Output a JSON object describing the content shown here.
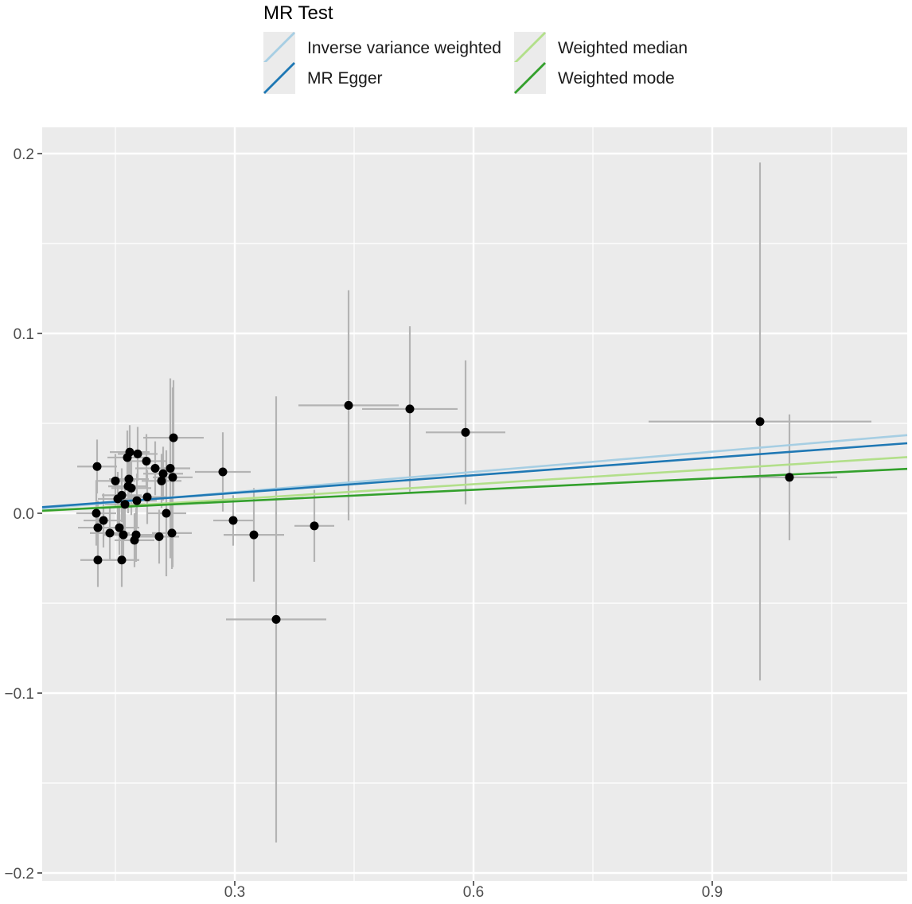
{
  "chart_data": {
    "type": "scatter",
    "title": "",
    "xlabel": "",
    "ylabel": "",
    "xlim": [
      0.1,
      1.12
    ],
    "ylim": [
      -0.2,
      0.215
    ],
    "x_ticks": [
      0.3,
      0.6,
      0.9
    ],
    "x_tick_labels": [
      "0.3",
      "0.6",
      "0.9"
    ],
    "y_ticks": [
      -0.2,
      -0.1,
      0.0,
      0.1,
      0.2
    ],
    "y_tick_labels": [
      "−0.2",
      "−0.1",
      "0.0",
      "0.1",
      "0.2"
    ],
    "grid": true,
    "legend": {
      "title": "MR Test",
      "position": "top",
      "entries": [
        {
          "name": "Inverse variance weighted",
          "color": "#a6cee3"
        },
        {
          "name": "MR Egger",
          "color": "#1f78b4"
        },
        {
          "name": "Weighted median",
          "color": "#b2df8a"
        },
        {
          "name": "Weighted mode",
          "color": "#33a02c"
        }
      ]
    },
    "lines": [
      {
        "name": "Inverse variance weighted",
        "color": "#a6cee3",
        "slope": 0.0375,
        "intercept": 0.0005
      },
      {
        "name": "MR Egger",
        "color": "#1f78b4",
        "slope": 0.0327,
        "intercept": 0.0015
      },
      {
        "name": "Weighted median",
        "color": "#b2df8a",
        "slope": 0.0276,
        "intercept": -0.0004
      },
      {
        "name": "Weighted mode",
        "color": "#33a02c",
        "slope": 0.0214,
        "intercept": 0.0002
      }
    ],
    "points": [
      {
        "x": 0.127,
        "y": 0.026,
        "xerr": 0.025,
        "yerr": 0.015
      },
      {
        "x": 0.126,
        "y": 0.0,
        "xerr": 0.025,
        "yerr": 0.018
      },
      {
        "x": 0.128,
        "y": -0.008,
        "xerr": 0.025,
        "yerr": 0.015
      },
      {
        "x": 0.128,
        "y": -0.026,
        "xerr": 0.022,
        "yerr": 0.015
      },
      {
        "x": 0.135,
        "y": -0.004,
        "xerr": 0.025,
        "yerr": 0.015
      },
      {
        "x": 0.143,
        "y": -0.011,
        "xerr": 0.025,
        "yerr": 0.015
      },
      {
        "x": 0.15,
        "y": 0.018,
        "xerr": 0.025,
        "yerr": 0.015
      },
      {
        "x": 0.153,
        "y": 0.008,
        "xerr": 0.025,
        "yerr": 0.015
      },
      {
        "x": 0.155,
        "y": -0.008,
        "xerr": 0.025,
        "yerr": 0.015
      },
      {
        "x": 0.158,
        "y": 0.01,
        "xerr": 0.025,
        "yerr": 0.015
      },
      {
        "x": 0.158,
        "y": -0.026,
        "xerr": 0.022,
        "yerr": 0.015
      },
      {
        "x": 0.16,
        "y": -0.012,
        "xerr": 0.025,
        "yerr": 0.015
      },
      {
        "x": 0.162,
        "y": 0.005,
        "xerr": 0.025,
        "yerr": 0.015
      },
      {
        "x": 0.165,
        "y": 0.031,
        "xerr": 0.025,
        "yerr": 0.015
      },
      {
        "x": 0.166,
        "y": 0.015,
        "xerr": 0.025,
        "yerr": 0.015
      },
      {
        "x": 0.167,
        "y": 0.019,
        "xerr": 0.025,
        "yerr": 0.015
      },
      {
        "x": 0.168,
        "y": 0.034,
        "xerr": 0.025,
        "yerr": 0.015
      },
      {
        "x": 0.17,
        "y": 0.014,
        "xerr": 0.025,
        "yerr": 0.015
      },
      {
        "x": 0.174,
        "y": -0.015,
        "xerr": 0.025,
        "yerr": 0.015
      },
      {
        "x": 0.176,
        "y": -0.012,
        "xerr": 0.025,
        "yerr": 0.015
      },
      {
        "x": 0.177,
        "y": 0.007,
        "xerr": 0.025,
        "yerr": 0.015
      },
      {
        "x": 0.178,
        "y": 0.033,
        "xerr": 0.025,
        "yerr": 0.015
      },
      {
        "x": 0.189,
        "y": 0.029,
        "xerr": 0.025,
        "yerr": 0.015
      },
      {
        "x": 0.19,
        "y": 0.009,
        "xerr": 0.025,
        "yerr": 0.015
      },
      {
        "x": 0.2,
        "y": 0.025,
        "xerr": 0.025,
        "yerr": 0.015
      },
      {
        "x": 0.205,
        "y": -0.013,
        "xerr": 0.025,
        "yerr": 0.015
      },
      {
        "x": 0.208,
        "y": 0.018,
        "xerr": 0.025,
        "yerr": 0.015
      },
      {
        "x": 0.21,
        "y": 0.022,
        "xerr": 0.025,
        "yerr": 0.015
      },
      {
        "x": 0.214,
        "y": 0.0,
        "xerr": 0.025,
        "yerr": 0.035
      },
      {
        "x": 0.219,
        "y": 0.025,
        "xerr": 0.025,
        "yerr": 0.05
      },
      {
        "x": 0.221,
        "y": -0.011,
        "xerr": 0.025,
        "yerr": 0.02
      },
      {
        "x": 0.222,
        "y": 0.02,
        "xerr": 0.025,
        "yerr": 0.05
      },
      {
        "x": 0.223,
        "y": 0.042,
        "xerr": 0.038,
        "yerr": 0.032
      },
      {
        "x": 0.285,
        "y": 0.023,
        "xerr": 0.035,
        "yerr": 0.022
      },
      {
        "x": 0.298,
        "y": -0.004,
        "xerr": 0.025,
        "yerr": 0.014
      },
      {
        "x": 0.324,
        "y": -0.012,
        "xerr": 0.038,
        "yerr": 0.026
      },
      {
        "x": 0.352,
        "y": -0.059,
        "xerr": 0.063,
        "yerr": 0.124
      },
      {
        "x": 0.4,
        "y": -0.007,
        "xerr": 0.025,
        "yerr": 0.02
      },
      {
        "x": 0.443,
        "y": 0.06,
        "xerr": 0.063,
        "yerr": 0.064
      },
      {
        "x": 0.52,
        "y": 0.058,
        "xerr": 0.06,
        "yerr": 0.046
      },
      {
        "x": 0.59,
        "y": 0.045,
        "xerr": 0.05,
        "yerr": 0.04
      },
      {
        "x": 0.96,
        "y": 0.051,
        "xerr": 0.14,
        "yerr": 0.144
      },
      {
        "x": 0.997,
        "y": 0.02,
        "xerr": 0.06,
        "yerr": 0.035
      }
    ]
  }
}
